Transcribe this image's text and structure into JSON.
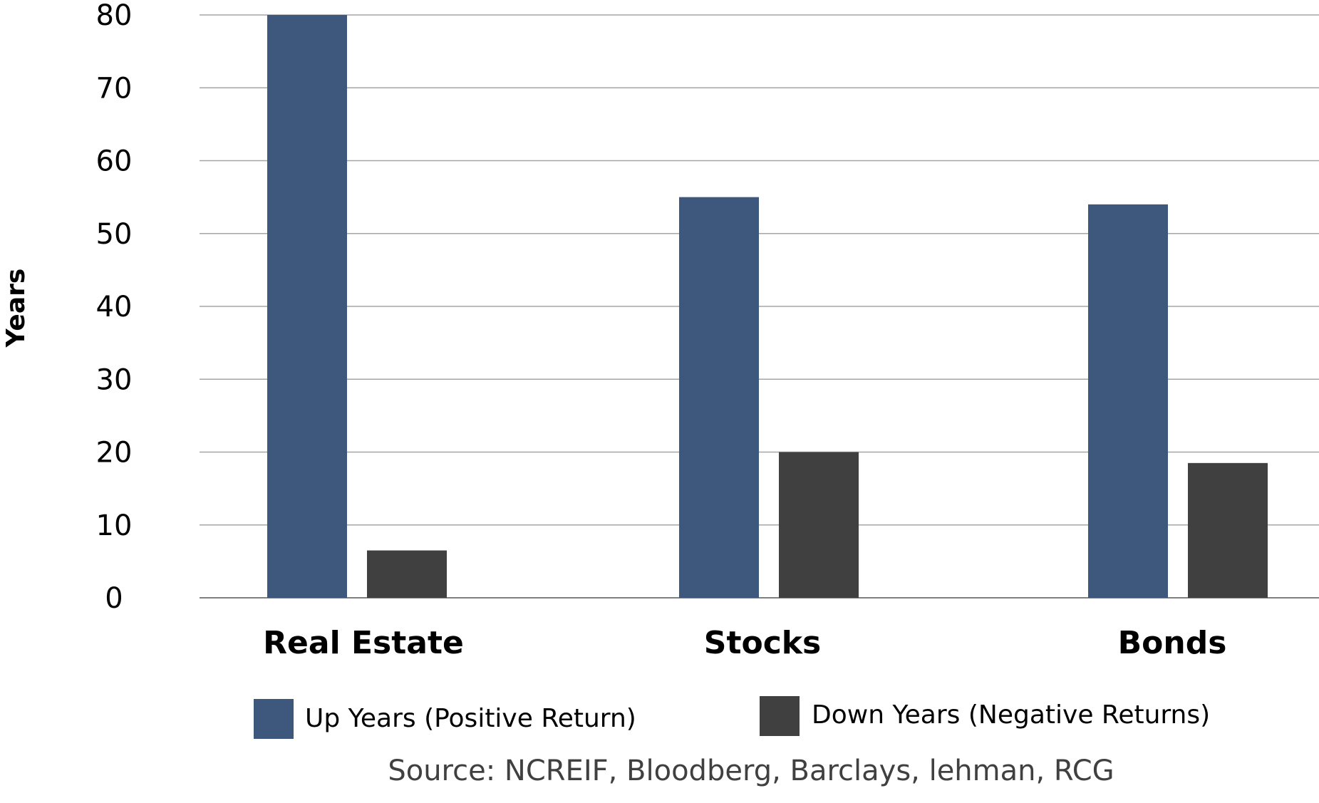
{
  "chart_data": {
    "type": "bar",
    "categories": [
      "Real Estate",
      "Stocks",
      "Bonds"
    ],
    "series": [
      {
        "name": "Up Years (Positive Return)",
        "values": [
          80,
          55,
          54
        ],
        "color": "#3D577D"
      },
      {
        "name": "Down Years (Negative Returns)",
        "values": [
          6.5,
          20,
          18.5
        ],
        "color": "#404040"
      }
    ],
    "title": "",
    "xlabel": "",
    "ylabel": "Years",
    "ylim": [
      0,
      80
    ],
    "yticks": [
      0,
      10,
      20,
      30,
      40,
      50,
      60,
      70,
      80
    ],
    "grid": true,
    "legend_position": "bottom",
    "source": "Source: NCREIF, Bloodberg, Barclays, lehman, RCG"
  }
}
